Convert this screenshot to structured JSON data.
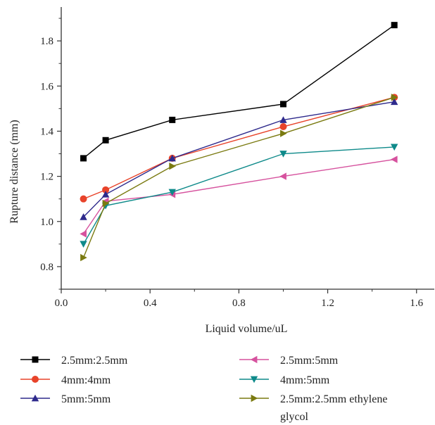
{
  "chart_data": {
    "type": "line",
    "xlabel": "Liquid volume/uL",
    "ylabel": "Rupture distance (mm)",
    "xlim": [
      0.0,
      1.68
    ],
    "ylim": [
      0.7,
      1.95
    ],
    "x_ticks": [
      0.0,
      0.4,
      0.8,
      1.2,
      1.6
    ],
    "x_tick_labels": [
      "0.0",
      "0.4",
      "0.8",
      "1.2",
      "1.6"
    ],
    "y_ticks": [
      0.8,
      1.0,
      1.2,
      1.4,
      1.6,
      1.8
    ],
    "y_tick_labels": [
      "0.8",
      "1.0",
      "1.2",
      "1.4",
      "1.6",
      "1.8"
    ],
    "grid": false,
    "legend_position": "bottom",
    "x": [
      0.1,
      0.2,
      0.5,
      1.0,
      1.5
    ],
    "series": [
      {
        "name": "2.5mm:2.5mm",
        "marker": "square",
        "color": "#000000",
        "values": [
          1.28,
          1.36,
          1.45,
          1.52,
          1.87
        ]
      },
      {
        "name": "4mm:4mm",
        "marker": "circle",
        "color": "#e8432a",
        "values": [
          1.1,
          1.14,
          1.28,
          1.42,
          1.55
        ]
      },
      {
        "name": "5mm:5mm",
        "marker": "triangle-up",
        "color": "#2e2a8c",
        "values": [
          1.02,
          1.12,
          1.28,
          1.45,
          1.53
        ]
      },
      {
        "name": "2.5mm:5mm",
        "marker": "triangle-left",
        "color": "#d6529e",
        "values": [
          0.945,
          1.09,
          1.12,
          1.2,
          1.275
        ]
      },
      {
        "name": "4mm:5mm",
        "marker": "triangle-down",
        "color": "#0e8a8a",
        "values": [
          0.9,
          1.07,
          1.13,
          1.3,
          1.33
        ]
      },
      {
        "name_lines": [
          "2.5mm:2.5mm ethylene",
          "glycol"
        ],
        "marker": "triangle-right",
        "color": "#7a7a10",
        "values": [
          0.84,
          1.08,
          1.245,
          1.39,
          1.55
        ]
      }
    ]
  }
}
